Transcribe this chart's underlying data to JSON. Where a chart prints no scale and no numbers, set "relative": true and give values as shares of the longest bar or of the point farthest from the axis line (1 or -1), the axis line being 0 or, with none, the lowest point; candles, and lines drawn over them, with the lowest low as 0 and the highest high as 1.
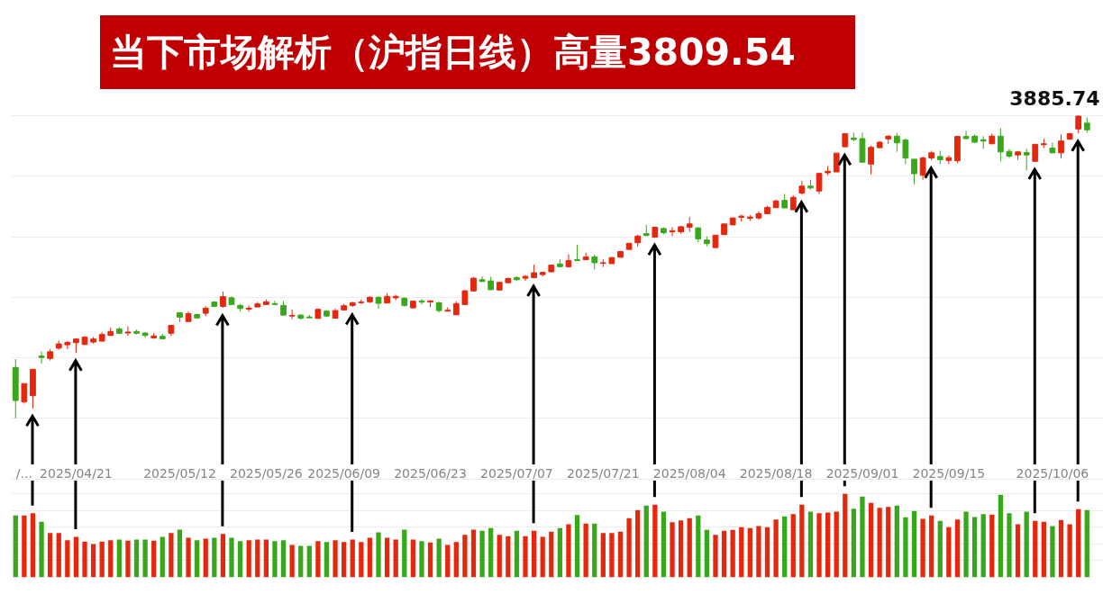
{
  "chart_data": [
    {
      "type": "candlestick",
      "title": "当下市场解析（沪指日线）高量3809.54",
      "relative": true,
      "categories": [
        null,
        "/...",
        null,
        null,
        null,
        null,
        null,
        "2025/04/21",
        null,
        null,
        null,
        null,
        null,
        null,
        null,
        null,
        null,
        null,
        null,
        "2025/05/12",
        null,
        null,
        null,
        null,
        null,
        null,
        null,
        null,
        null,
        "2025/05/26",
        null,
        null,
        null,
        null,
        null,
        null,
        null,
        null,
        "2025/06/09",
        null,
        null,
        null,
        null,
        null,
        null,
        null,
        null,
        null,
        "2025/06/23",
        null,
        null,
        null,
        null,
        null,
        null,
        null,
        null,
        null,
        "2025/07/07",
        null,
        null,
        null,
        null,
        null,
        null,
        null,
        null,
        null,
        "2025/07/21",
        null,
        null,
        null,
        null,
        null,
        null,
        null,
        null,
        null,
        "2025/08/04",
        null,
        null,
        null,
        null,
        null,
        null,
        null,
        null,
        null,
        "2025/08/18",
        null,
        null,
        null,
        null,
        null,
        null,
        null,
        null,
        null,
        "2025/09/01",
        null,
        null,
        null,
        null,
        null,
        null,
        null,
        null,
        null,
        "2025/09/15",
        null,
        null,
        null,
        null,
        null,
        null,
        null,
        null,
        null,
        null,
        null,
        "2025/10/06",
        null,
        null,
        null,
        null
      ],
      "ohlc": [
        [
          0.168,
          0.196,
          0,
          0.059
        ],
        [
          0.055,
          0.115,
          0.049,
          0.115
        ],
        [
          0.075,
          0.162,
          0.033,
          0.162
        ],
        [
          0.206,
          0.221,
          0.181,
          0.201
        ],
        [
          0.198,
          0.229,
          0.191,
          0.22
        ],
        [
          0.232,
          0.256,
          0.226,
          0.246
        ],
        [
          0.243,
          0.255,
          0.229,
          0.251
        ],
        [
          0.25,
          0.263,
          0.216,
          0.262
        ],
        [
          0.244,
          0.272,
          0.242,
          0.268
        ],
        [
          0.252,
          0.269,
          0.247,
          0.262
        ],
        [
          0.255,
          0.285,
          0.255,
          0.277
        ],
        [
          0.274,
          0.3,
          0.272,
          0.287
        ],
        [
          0.295,
          0.301,
          0.28,
          0.281
        ],
        [
          0.282,
          0.304,
          0.272,
          0.285
        ],
        [
          0.287,
          0.293,
          0.277,
          0.281
        ],
        [
          0.282,
          0.285,
          0.266,
          0.274
        ],
        [
          0.266,
          0.282,
          0.263,
          0.272
        ],
        [
          0.271,
          0.28,
          0.263,
          0.263
        ],
        [
          0.281,
          0.307,
          0.272,
          0.307
        ],
        [
          0.349,
          0.35,
          0.318,
          0.334
        ],
        [
          0.32,
          0.354,
          0.32,
          0.346
        ],
        [
          0.343,
          0.346,
          0.329,
          0.332
        ],
        [
          0.347,
          0.37,
          0.338,
          0.364
        ],
        [
          0.384,
          0.387,
          0.368,
          0.37
        ],
        [
          0.37,
          0.419,
          0.365,
          0.402
        ],
        [
          0.398,
          0.403,
          0.375,
          0.376
        ],
        [
          0.373,
          0.378,
          0.353,
          0.363
        ],
        [
          0.361,
          0.373,
          0.352,
          0.364
        ],
        [
          0.368,
          0.385,
          0.368,
          0.378
        ],
        [
          0.376,
          0.393,
          0.376,
          0.385
        ],
        [
          0.379,
          0.388,
          0.373,
          0.376
        ],
        [
          0.373,
          0.387,
          0.341,
          0.341
        ],
        [
          0.338,
          0.359,
          0.328,
          0.34
        ],
        [
          0.341,
          0.344,
          0.326,
          0.331
        ],
        [
          0.335,
          0.342,
          0.33,
          0.332
        ],
        [
          0.33,
          0.363,
          0.33,
          0.36
        ],
        [
          0.354,
          0.356,
          0.335,
          0.338
        ],
        [
          0.331,
          0.363,
          0.331,
          0.356
        ],
        [
          0.358,
          0.378,
          0.357,
          0.372
        ],
        [
          0.373,
          0.385,
          0.368,
          0.382
        ],
        [
          0.382,
          0.393,
          0.378,
          0.384
        ],
        [
          0.385,
          0.403,
          0.381,
          0.4
        ],
        [
          0.4,
          0.403,
          0.362,
          0.38
        ],
        [
          0.381,
          0.414,
          0.381,
          0.403
        ],
        [
          0.398,
          0.408,
          0.39,
          0.403
        ],
        [
          0.397,
          0.399,
          0.369,
          0.373
        ],
        [
          0.365,
          0.387,
          0.365,
          0.387
        ],
        [
          0.388,
          0.394,
          0.376,
          0.384
        ],
        [
          0.384,
          0.39,
          0.368,
          0.388
        ],
        [
          0.382,
          0.385,
          0.35,
          0.356
        ],
        [
          0.354,
          0.367,
          0.353,
          0.357
        ],
        [
          0.342,
          0.387,
          0.342,
          0.379
        ],
        [
          0.376,
          0.425,
          0.376,
          0.421
        ],
        [
          0.421,
          0.467,
          0.419,
          0.463
        ],
        [
          0.458,
          0.468,
          0.452,
          0.452
        ],
        [
          0.454,
          0.468,
          0.425,
          0.425
        ],
        [
          0.424,
          0.451,
          0.422,
          0.449
        ],
        [
          0.448,
          0.465,
          0.447,
          0.462
        ],
        [
          0.465,
          0.469,
          0.454,
          0.458
        ],
        [
          0.463,
          0.474,
          0.454,
          0.469
        ],
        [
          0.465,
          0.508,
          0.462,
          0.481
        ],
        [
          0.475,
          0.483,
          0.469,
          0.482
        ],
        [
          0.484,
          0.508,
          0.483,
          0.506
        ],
        [
          0.51,
          0.526,
          0.501,
          0.501
        ],
        [
          0.501,
          0.542,
          0.5,
          0.521
        ],
        [
          0.524,
          0.574,
          0.52,
          0.521
        ],
        [
          0.524,
          0.547,
          0.524,
          0.533
        ],
        [
          0.533,
          0.541,
          0.492,
          0.514
        ],
        [
          0.512,
          0.526,
          0.5,
          0.514
        ],
        [
          0.511,
          0.533,
          0.511,
          0.531
        ],
        [
          0.532,
          0.553,
          0.531,
          0.551
        ],
        [
          0.558,
          0.58,
          0.558,
          0.578
        ],
        [
          0.58,
          0.607,
          0.567,
          0.602
        ],
        [
          0.61,
          0.639,
          0.602,
          0.604
        ],
        [
          0.598,
          0.633,
          0.598,
          0.631
        ],
        [
          0.627,
          0.631,
          0.608,
          0.613
        ],
        [
          0.616,
          0.631,
          0.602,
          0.62
        ],
        [
          0.616,
          0.636,
          0.61,
          0.633
        ],
        [
          0.631,
          0.665,
          0.616,
          0.642
        ],
        [
          0.629,
          0.631,
          0.582,
          0.593
        ],
        [
          0.589,
          0.601,
          0.568,
          0.577
        ],
        [
          0.564,
          0.605,
          0.564,
          0.605
        ],
        [
          0.607,
          0.643,
          0.607,
          0.642
        ],
        [
          0.639,
          0.663,
          0.639,
          0.662
        ],
        [
          0.664,
          0.673,
          0.65,
          0.668
        ],
        [
          0.661,
          0.672,
          0.652,
          0.665
        ],
        [
          0.662,
          0.684,
          0.656,
          0.676
        ],
        [
          0.676,
          0.702,
          0.676,
          0.697
        ],
        [
          0.696,
          0.723,
          0.696,
          0.718
        ],
        [
          0.72,
          0.741,
          0.695,
          0.695
        ],
        [
          0.689,
          0.736,
          0.689,
          0.73
        ],
        [
          0.744,
          0.785,
          0.739,
          0.767
        ],
        [
          0.767,
          0.788,
          0.756,
          0.761
        ],
        [
          0.751,
          0.811,
          0.741,
          0.809
        ],
        [
          0.811,
          0.833,
          0.803,
          0.816
        ],
        [
          0.814,
          0.876,
          0.814,
          0.876
        ],
        [
          0.897,
          0.941,
          0.895,
          0.94
        ],
        [
          0.926,
          0.944,
          0.915,
          0.921
        ],
        [
          0.924,
          0.944,
          0.846,
          0.846
        ],
        [
          0.84,
          0.9,
          0.805,
          0.895
        ],
        [
          0.894,
          0.916,
          0.892,
          0.912
        ],
        [
          0.923,
          0.935,
          0.907,
          0.932
        ],
        [
          0.932,
          0.943,
          0.88,
          0.91
        ],
        [
          0.919,
          0.925,
          0.84,
          0.86
        ],
        [
          0.856,
          0.856,
          0.773,
          0.808
        ],
        [
          0.803,
          0.865,
          0.788,
          0.86
        ],
        [
          0.86,
          0.884,
          0.852,
          0.877
        ],
        [
          0.865,
          0.884,
          0.839,
          0.854
        ],
        [
          0.852,
          0.869,
          0.84,
          0.861
        ],
        [
          0.851,
          0.931,
          0.843,
          0.931
        ],
        [
          0.931,
          0.949,
          0.922,
          0.924
        ],
        [
          0.932,
          0.938,
          0.91,
          0.912
        ],
        [
          0.92,
          0.932,
          0.89,
          0.916
        ],
        [
          0.907,
          0.941,
          0.905,
          0.932
        ],
        [
          0.932,
          0.958,
          0.849,
          0.88
        ],
        [
          0.882,
          0.89,
          0.86,
          0.866
        ],
        [
          0.87,
          0.883,
          0.854,
          0.88
        ],
        [
          0.878,
          0.89,
          0.819,
          0.87
        ],
        [
          0.849,
          0.907,
          0.848,
          0.905
        ],
        [
          0.904,
          0.923,
          0.893,
          0.907
        ],
        [
          0.893,
          0.911,
          0.875,
          0.877
        ],
        [
          0.877,
          0.938,
          0.858,
          0.916
        ],
        [
          0.922,
          0.944,
          0.92,
          0.94
        ],
        [
          0.956,
          1,
          0.941,
          0.998
        ],
        [
          0.975,
          0.994,
          0.943,
          0.953
        ]
      ],
      "colors": [
        "#38a81b",
        "#e5270e",
        "#e5270e",
        "#38a81b",
        "#e5270e",
        "#e5270e",
        "#e5270e",
        "#e5270e",
        "#e5270e",
        "#e5270e",
        "#e5270e",
        "#e5270e",
        "#38a81b",
        "#e5270e",
        "#38a81b",
        "#38a81b",
        "#e5270e",
        "#38a81b",
        "#e5270e",
        "#38a81b",
        "#e5270e",
        "#38a81b",
        "#e5270e",
        "#38a81b",
        "#e5270e",
        "#38a81b",
        "#38a81b",
        "#e5270e",
        "#e5270e",
        "#e5270e",
        "#38a81b",
        "#38a81b",
        "#e5270e",
        "#38a81b",
        "#38a81b",
        "#e5270e",
        "#38a81b",
        "#e5270e",
        "#e5270e",
        "#e5270e",
        "#e5270e",
        "#e5270e",
        "#38a81b",
        "#e5270e",
        "#e5270e",
        "#38a81b",
        "#e5270e",
        "#38a81b",
        "#e5270e",
        "#38a81b",
        "#e5270e",
        "#e5270e",
        "#e5270e",
        "#e5270e",
        "#38a81b",
        "#38a81b",
        "#e5270e",
        "#e5270e",
        "#38a81b",
        "#e5270e",
        "#e5270e",
        "#e5270e",
        "#e5270e",
        "#38a81b",
        "#e5270e",
        "#38a81b",
        "#e5270e",
        "#38a81b",
        "#e5270e",
        "#e5270e",
        "#e5270e",
        "#e5270e",
        "#e5270e",
        "#38a81b",
        "#e5270e",
        "#38a81b",
        "#e5270e",
        "#e5270e",
        "#e5270e",
        "#38a81b",
        "#38a81b",
        "#e5270e",
        "#e5270e",
        "#e5270e",
        "#e5270e",
        "#e5270e",
        "#e5270e",
        "#e5270e",
        "#e5270e",
        "#38a81b",
        "#e5270e",
        "#e5270e",
        "#38a81b",
        "#e5270e",
        "#e5270e",
        "#e5270e",
        "#e5270e",
        "#38a81b",
        "#38a81b",
        "#e5270e",
        "#e5270e",
        "#e5270e",
        "#38a81b",
        "#38a81b",
        "#38a81b",
        "#e5270e",
        "#e5270e",
        "#38a81b",
        "#e5270e",
        "#e5270e",
        "#38a81b",
        "#38a81b",
        "#38a81b",
        "#e5270e",
        "#38a81b",
        "#38a81b",
        "#e5270e",
        "#38a81b",
        "#e5270e",
        "#e5270e",
        "#38a81b",
        "#e5270e",
        "#e5270e",
        "#e5270e",
        "#38a81b"
      ],
      "grid": "y",
      "annotations": [
        "3885.74"
      ]
    },
    {
      "type": "bar",
      "relative": true,
      "grid": "y",
      "categories": [
        null,
        null,
        null,
        null,
        null,
        null,
        null,
        null,
        null,
        null,
        null,
        null,
        null,
        null,
        null,
        null,
        null,
        null,
        null,
        null,
        null,
        null,
        null,
        null,
        null,
        null,
        null,
        null,
        null,
        null,
        null,
        null,
        null,
        null,
        null,
        null,
        null,
        null,
        null,
        null,
        null,
        null,
        null,
        null,
        null,
        null,
        null,
        null,
        null,
        null,
        null,
        null,
        null,
        null,
        null,
        null,
        null,
        null,
        null,
        null,
        null,
        null,
        null,
        null,
        null,
        null,
        null,
        null,
        null,
        null,
        null,
        null,
        null,
        null,
        null,
        null,
        null,
        null,
        null,
        null,
        null,
        null,
        null,
        null,
        null,
        null,
        null,
        null,
        null,
        null,
        null,
        null,
        null,
        null,
        null,
        null,
        null,
        null,
        null,
        null,
        null,
        null,
        null,
        null,
        null,
        null,
        null,
        null,
        null,
        null,
        null,
        null,
        null,
        null,
        null,
        null,
        null,
        null,
        null,
        null,
        null,
        null,
        null,
        null,
        null
      ],
      "values": [
        0.741,
        0.741,
        0.769,
        0.666,
        0.532,
        0.532,
        0.446,
        0.485,
        0.428,
        0.399,
        0.428,
        0.446,
        0.453,
        0.439,
        0.453,
        0.453,
        0.439,
        0.485,
        0.532,
        0.572,
        0.475,
        0.446,
        0.464,
        0.475,
        0.521,
        0.475,
        0.435,
        0.446,
        0.453,
        0.453,
        0.435,
        0.446,
        0.388,
        0.378,
        0.378,
        0.435,
        0.424,
        0.446,
        0.424,
        0.453,
        0.424,
        0.475,
        0.539,
        0.475,
        0.453,
        0.572,
        0.453,
        0.435,
        0.417,
        0.464,
        0.388,
        0.424,
        0.51,
        0.572,
        0.558,
        0.59,
        0.51,
        0.493,
        0.558,
        0.493,
        0.558,
        0.485,
        0.547,
        0.59,
        0.636,
        0.748,
        0.644,
        0.644,
        0.532,
        0.532,
        0.547,
        0.709,
        0.806,
        0.86,
        0.871,
        0.787,
        0.661,
        0.683,
        0.709,
        0.741,
        0.568,
        0.51,
        0.558,
        0.568,
        0.601,
        0.59,
        0.615,
        0.601,
        0.694,
        0.73,
        0.758,
        0.871,
        0.787,
        0.769,
        0.777,
        0.787,
        1,
        0.823,
        0.968,
        0.892,
        0.834,
        0.845,
        0.86,
        0.72,
        0.795,
        0.701,
        0.741,
        0.676,
        0.601,
        0.694,
        0.787,
        0.723,
        0.758,
        0.752,
        0.989,
        0.769,
        0.636,
        0.787,
        0.676,
        0.666,
        0.615,
        0.687,
        0.636,
        0.817,
        0.806
      ],
      "colors": [
        "#38a81b",
        "#e5270e",
        "#e5270e",
        "#38a81b",
        "#e5270e",
        "#e5270e",
        "#e5270e",
        "#e5270e",
        "#e5270e",
        "#e5270e",
        "#e5270e",
        "#e5270e",
        "#38a81b",
        "#e5270e",
        "#38a81b",
        "#38a81b",
        "#e5270e",
        "#38a81b",
        "#e5270e",
        "#38a81b",
        "#e5270e",
        "#38a81b",
        "#e5270e",
        "#38a81b",
        "#e5270e",
        "#38a81b",
        "#38a81b",
        "#e5270e",
        "#e5270e",
        "#e5270e",
        "#38a81b",
        "#38a81b",
        "#e5270e",
        "#38a81b",
        "#38a81b",
        "#e5270e",
        "#38a81b",
        "#e5270e",
        "#e5270e",
        "#e5270e",
        "#e5270e",
        "#e5270e",
        "#38a81b",
        "#e5270e",
        "#e5270e",
        "#38a81b",
        "#e5270e",
        "#38a81b",
        "#e5270e",
        "#38a81b",
        "#e5270e",
        "#e5270e",
        "#e5270e",
        "#e5270e",
        "#38a81b",
        "#38a81b",
        "#e5270e",
        "#e5270e",
        "#38a81b",
        "#e5270e",
        "#e5270e",
        "#e5270e",
        "#e5270e",
        "#38a81b",
        "#e5270e",
        "#38a81b",
        "#e5270e",
        "#38a81b",
        "#e5270e",
        "#e5270e",
        "#e5270e",
        "#e5270e",
        "#e5270e",
        "#38a81b",
        "#e5270e",
        "#38a81b",
        "#e5270e",
        "#e5270e",
        "#e5270e",
        "#38a81b",
        "#38a81b",
        "#e5270e",
        "#e5270e",
        "#e5270e",
        "#e5270e",
        "#e5270e",
        "#e5270e",
        "#e5270e",
        "#e5270e",
        "#38a81b",
        "#e5270e",
        "#e5270e",
        "#38a81b",
        "#e5270e",
        "#e5270e",
        "#e5270e",
        "#e5270e",
        "#38a81b",
        "#38a81b",
        "#e5270e",
        "#e5270e",
        "#e5270e",
        "#38a81b",
        "#38a81b",
        "#38a81b",
        "#e5270e",
        "#e5270e",
        "#38a81b",
        "#e5270e",
        "#e5270e",
        "#38a81b",
        "#38a81b",
        "#38a81b",
        "#e5270e",
        "#38a81b",
        "#38a81b",
        "#e5270e",
        "#38a81b",
        "#e5270e",
        "#e5270e",
        "#38a81b",
        "#e5270e",
        "#e5270e",
        "#e5270e",
        "#38a81b"
      ]
    }
  ]
}
